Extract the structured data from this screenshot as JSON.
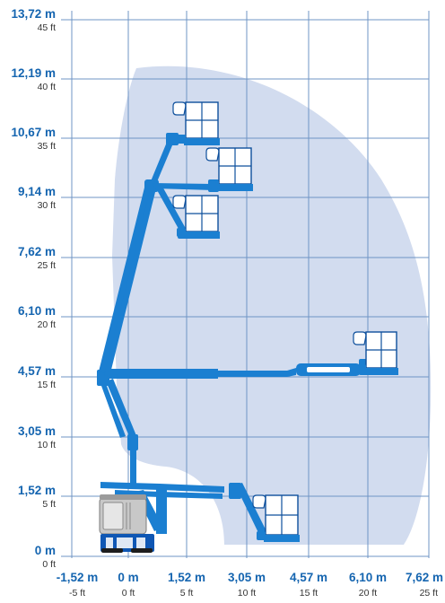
{
  "colors": {
    "label": "#1565b0",
    "ft_label": "#333333",
    "grid": "#6f94c4",
    "envelope": "#d2dcef",
    "boom": "#1b7fd1",
    "boom_dark": "#0d4f9c",
    "chassis": "#c8c8c8",
    "chassis_dark": "#7d7d7d",
    "base": "#0f57b4"
  },
  "y_axis": [
    {
      "m": "13,72 m",
      "ft": "45 ft"
    },
    {
      "m": "12,19 m",
      "ft": "40 ft"
    },
    {
      "m": "10,67 m",
      "ft": "35 ft"
    },
    {
      "m": "9,14 m",
      "ft": "30 ft"
    },
    {
      "m": "7,62 m",
      "ft": "25 ft"
    },
    {
      "m": "6,10 m",
      "ft": "20 ft"
    },
    {
      "m": "4,57 m",
      "ft": "15 ft"
    },
    {
      "m": "3,05 m",
      "ft": "10 ft"
    },
    {
      "m": "1,52 m",
      "ft": "5 ft"
    },
    {
      "m": "0 m",
      "ft": "0 ft"
    }
  ],
  "x_axis": [
    {
      "m": "-1,52 m",
      "ft": "-5 ft"
    },
    {
      "m": "0 m",
      "ft": "0 ft"
    },
    {
      "m": "1,52 m",
      "ft": "5 ft"
    },
    {
      "m": "3,05 m",
      "ft": "10 ft"
    },
    {
      "m": "4,57 m",
      "ft": "15 ft"
    },
    {
      "m": "6,10 m",
      "ft": "20 ft"
    },
    {
      "m": "7,62 m",
      "ft": "25 ft"
    }
  ]
}
